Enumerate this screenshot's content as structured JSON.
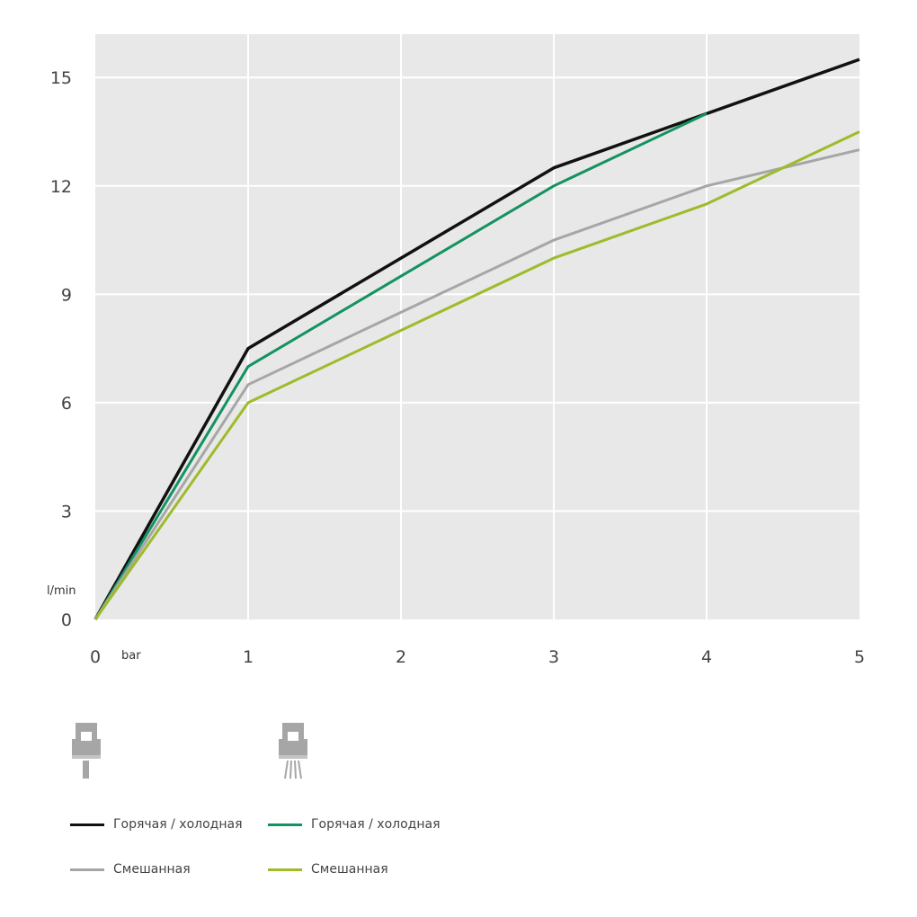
{
  "chart_data": {
    "type": "line",
    "title": "",
    "xlabel": "bar",
    "ylabel": "l/min",
    "xlim": [
      0,
      5
    ],
    "ylim": [
      0,
      16.2
    ],
    "x_ticks": [
      "0",
      "1",
      "2",
      "3",
      "4",
      "5"
    ],
    "y_ticks": [
      "0",
      "3",
      "6",
      "9",
      "12",
      "15"
    ],
    "grid": true,
    "legend_position": "bottom",
    "series": [
      {
        "name": "Горячая / холодная",
        "color": "#111111",
        "x": [
          0,
          1,
          2,
          3,
          4,
          5
        ],
        "y": [
          0,
          7.5,
          10.0,
          12.5,
          14.0,
          15.5
        ]
      },
      {
        "name": "Горячая / холодная",
        "color": "#14925f",
        "x": [
          0,
          1,
          2,
          3,
          4
        ],
        "y": [
          0,
          7.0,
          9.5,
          12.0,
          14.0
        ]
      },
      {
        "name": "Смешанная",
        "color": "#a6a6a6",
        "x": [
          0,
          1,
          2,
          3,
          4,
          5
        ],
        "y": [
          0,
          6.5,
          8.5,
          10.5,
          12.0,
          13.0
        ]
      },
      {
        "name": "Смешанная",
        "color": "#9dbb2a",
        "x": [
          0,
          1,
          2,
          3,
          4,
          5
        ],
        "y": [
          0,
          6.0,
          8.0,
          10.0,
          11.5,
          13.5
        ]
      }
    ]
  },
  "icons": {
    "nozzle_solid": "nozzle-solid-stream-icon",
    "nozzle_spray": "nozzle-spray-icon",
    "color": "#a6a6a6"
  },
  "style": {
    "plot_background": "#e8e8e8",
    "grid_color": "#ffffff"
  }
}
